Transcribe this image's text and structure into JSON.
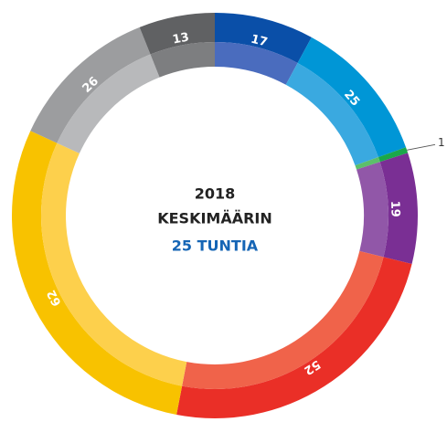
{
  "chart_data": {
    "type": "donut",
    "values": [
      17,
      25,
      1,
      19,
      52,
      62,
      26,
      13
    ],
    "colors": [
      "#0a4fa8",
      "#0096d6",
      "#1aa84a",
      "#7a2f94",
      "#ea2f27",
      "#f8c200",
      "#9c9d9f",
      "#606163"
    ],
    "inner_colors": [
      "#4a6cbe",
      "#3aa9e0",
      "#5cbf6a",
      "#9157a8",
      "#f0634a",
      "#fdd04c",
      "#b8b9bb",
      "#7d7e80"
    ],
    "center_lines": [
      "2018",
      "KESKIMÄÄRIN"
    ],
    "center_highlight": "25 TUNTIA",
    "highlight_color": "#1565b5"
  }
}
